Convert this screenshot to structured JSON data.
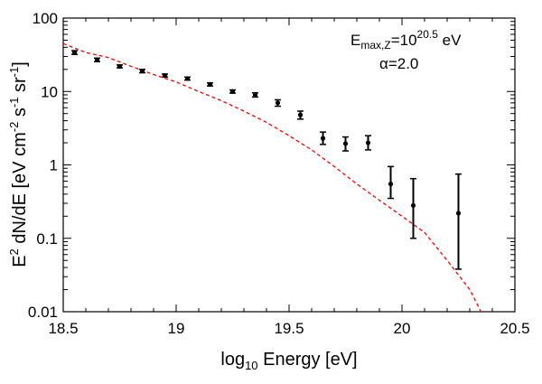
{
  "chart_data": {
    "type": "scatter",
    "title": "",
    "xlabel_text": "Energy [eV]",
    "xlabel_log_prefix": "log",
    "xlabel_log_sub": "10",
    "ylabel_text": "dN/dE [eV cm",
    "xlim": [
      18.5,
      20.5
    ],
    "ylim": [
      0.01,
      100
    ],
    "y_scale": "log",
    "grid": false,
    "x_ticks": [
      "18.5",
      "19",
      "19.5",
      "20",
      "20.5"
    ],
    "y_ticks": [
      "0.01",
      "0.1",
      "1",
      "10",
      "100"
    ],
    "annotation": {
      "line1_prefix": "E",
      "line1_sub": "max,Z",
      "line1_mid": "=10",
      "line1_sup": "20.5",
      "line1_unit": "eV",
      "line2": "α=2.0"
    },
    "series": [
      {
        "kind": "points_with_errorbars",
        "color": "#000000",
        "points": [
          {
            "x": 18.55,
            "y": 34.0,
            "lo": 32.0,
            "hi": 36.0
          },
          {
            "x": 18.65,
            "y": 27.0,
            "lo": 25.5,
            "hi": 28.5
          },
          {
            "x": 18.75,
            "y": 22.0,
            "lo": 21.0,
            "hi": 23.0
          },
          {
            "x": 18.85,
            "y": 19.0,
            "lo": 18.0,
            "hi": 20.0
          },
          {
            "x": 18.95,
            "y": 16.5,
            "lo": 15.7,
            "hi": 17.3
          },
          {
            "x": 19.05,
            "y": 15.0,
            "lo": 14.3,
            "hi": 15.7
          },
          {
            "x": 19.15,
            "y": 12.5,
            "lo": 11.9,
            "hi": 13.1
          },
          {
            "x": 19.25,
            "y": 10.0,
            "lo": 9.5,
            "hi": 10.5
          },
          {
            "x": 19.35,
            "y": 9.0,
            "lo": 8.4,
            "hi": 9.6
          },
          {
            "x": 19.45,
            "y": 7.0,
            "lo": 6.3,
            "hi": 7.7
          },
          {
            "x": 19.55,
            "y": 4.8,
            "lo": 4.2,
            "hi": 5.4
          },
          {
            "x": 19.65,
            "y": 2.3,
            "lo": 1.9,
            "hi": 2.8
          },
          {
            "x": 19.75,
            "y": 1.95,
            "lo": 1.55,
            "hi": 2.4
          },
          {
            "x": 19.85,
            "y": 2.0,
            "lo": 1.6,
            "hi": 2.5
          },
          {
            "x": 19.95,
            "y": 0.55,
            "lo": 0.35,
            "hi": 0.95
          },
          {
            "x": 20.05,
            "y": 0.28,
            "lo": 0.1,
            "hi": 0.65
          },
          {
            "x": 20.25,
            "y": 0.22,
            "lo": 0.038,
            "hi": 0.75
          }
        ]
      },
      {
        "kind": "line",
        "style": "dashed",
        "color": "#ff0000",
        "x": [
          18.5,
          18.6,
          18.7,
          18.8,
          18.9,
          19.0,
          19.1,
          19.2,
          19.3,
          19.4,
          19.5,
          19.6,
          19.7,
          19.8,
          19.9,
          20.0,
          20.1,
          20.2,
          20.3,
          20.35
        ],
        "y": [
          45.0,
          34.0,
          29.0,
          22.0,
          17.0,
          13.5,
          10.0,
          7.5,
          5.4,
          3.8,
          2.5,
          1.6,
          0.95,
          0.55,
          0.33,
          0.2,
          0.12,
          0.05,
          0.02,
          0.01
        ]
      }
    ]
  }
}
